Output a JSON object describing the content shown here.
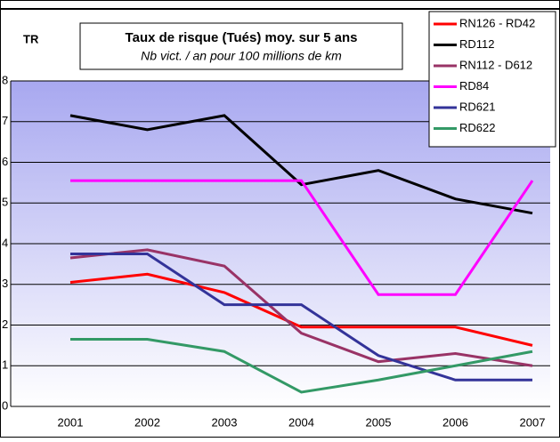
{
  "chart_data": {
    "type": "line",
    "title": "Taux de risque (Tués) moy. sur 5 ans",
    "subtitle": "Nb vict. / an pour 100 millions de km",
    "y_label": "TR",
    "categories": [
      "2001",
      "2002",
      "2003",
      "2004",
      "2005",
      "2006",
      "2007"
    ],
    "ylim": [
      0,
      8
    ],
    "yticks": [
      0,
      1,
      2,
      3,
      4,
      5,
      6,
      7,
      8
    ],
    "grid": true,
    "legend": "top-right",
    "series": [
      {
        "name": "RN126 - RD42",
        "color": "#ff0000",
        "values": [
          3.05,
          3.25,
          2.8,
          1.95,
          1.95,
          1.95,
          1.5
        ]
      },
      {
        "name": "RD112",
        "color": "#000000",
        "values": [
          7.15,
          6.8,
          7.15,
          5.45,
          5.8,
          5.1,
          4.75
        ]
      },
      {
        "name": "RN112 - D612",
        "color": "#993366",
        "values": [
          3.65,
          3.85,
          3.45,
          1.8,
          1.1,
          1.3,
          1.0
        ]
      },
      {
        "name": "RD84",
        "color": "#ff00ff",
        "values": [
          5.55,
          5.55,
          5.55,
          5.55,
          2.75,
          2.75,
          5.55
        ]
      },
      {
        "name": "RD621",
        "color": "#333399",
        "values": [
          3.75,
          3.75,
          2.5,
          2.5,
          1.25,
          0.65,
          0.65
        ]
      },
      {
        "name": "RD622",
        "color": "#339966",
        "values": [
          1.65,
          1.65,
          1.35,
          0.35,
          0.65,
          1.0,
          1.35
        ]
      }
    ]
  }
}
